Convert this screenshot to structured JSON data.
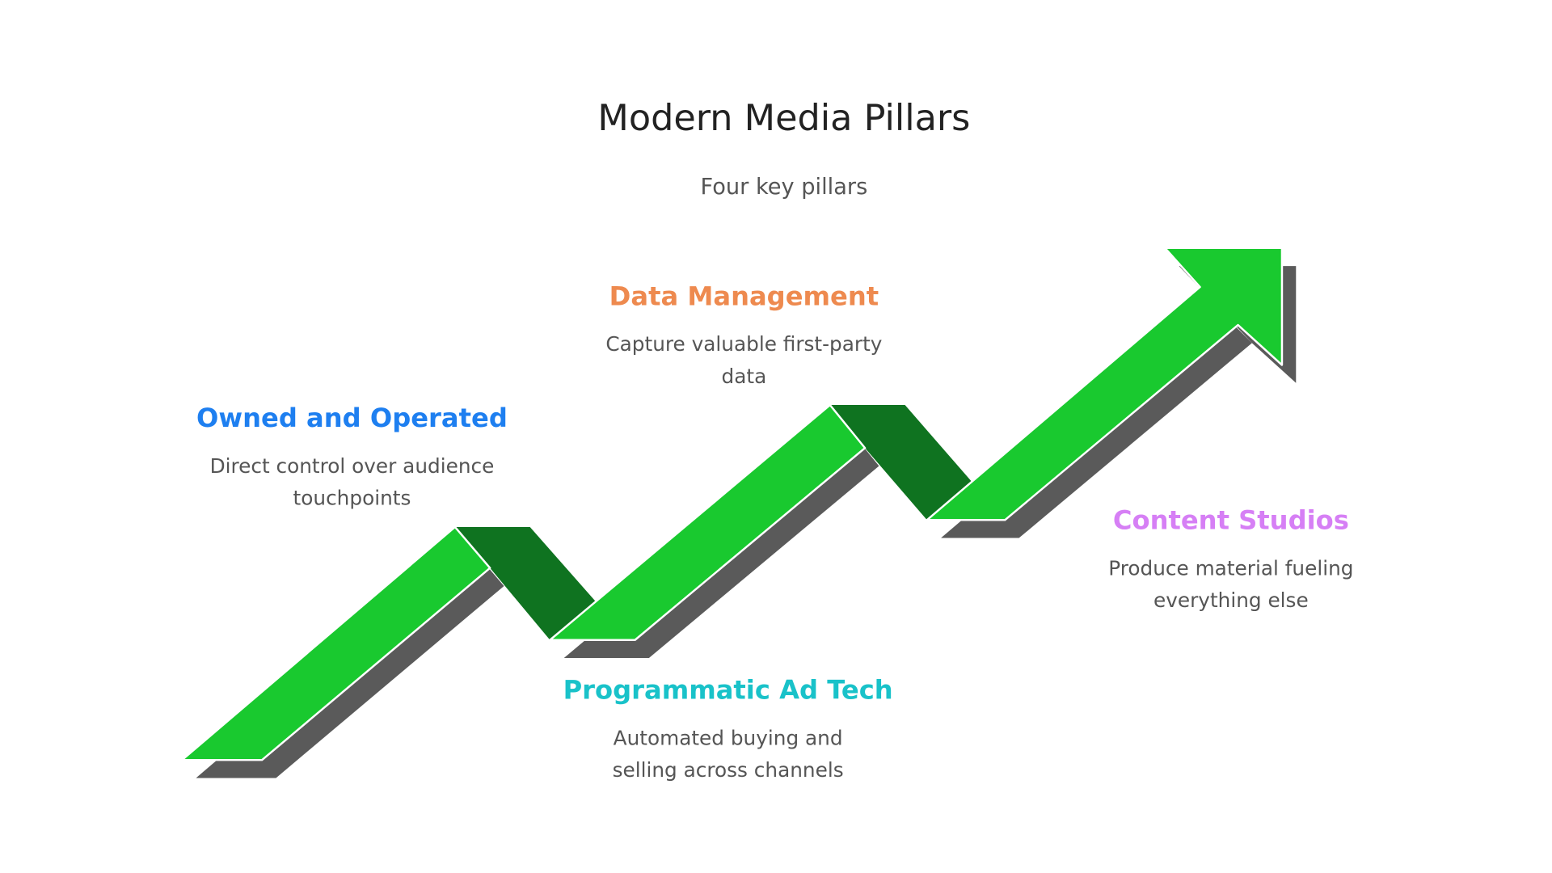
{
  "header": {
    "title": "Modern Media Pillars",
    "subtitle": "Four key pillars"
  },
  "pillars": [
    {
      "title": "Owned and Operated",
      "color": "#1e7ff0",
      "description": [
        "Direct control over audience",
        "touchpoints"
      ]
    },
    {
      "title": "Data Management",
      "color": "#ee8a4f",
      "description": [
        "Capture valuable first-party",
        "data"
      ]
    },
    {
      "title": "Programmatic Ad Tech",
      "color": "#19c2c9",
      "description": [
        "Automated buying and",
        "selling across channels"
      ]
    },
    {
      "title": "Content Studios",
      "color": "#d67ff5",
      "description": [
        "Produce material fueling",
        "everything else"
      ]
    }
  ]
}
